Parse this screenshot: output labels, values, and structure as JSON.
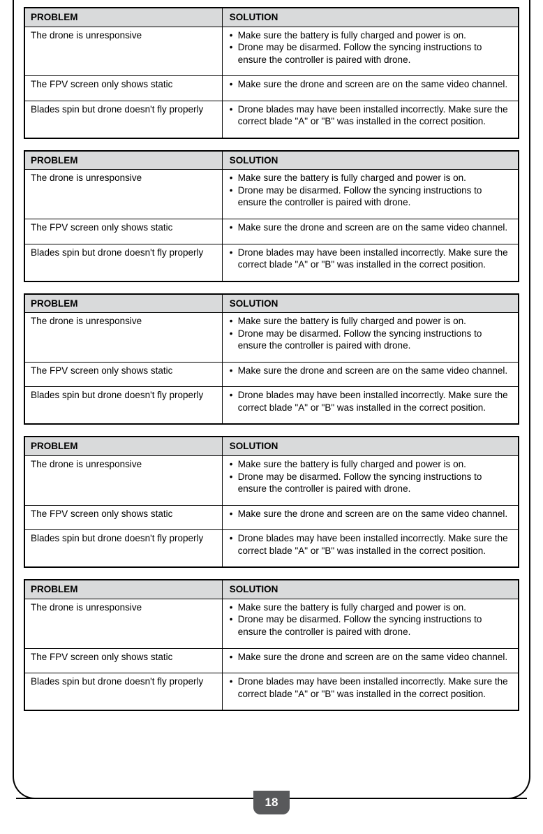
{
  "page_number": "18",
  "colors": {
    "header_bg": "#d9dadb",
    "border": "#000000",
    "page_tab_bg": "#58595b",
    "page_tab_text": "#ffffff",
    "text": "#000000"
  },
  "column_headers": {
    "problem": "PROBLEM",
    "solution": "SOLUTION"
  },
  "table": {
    "rows": [
      {
        "problem": "The drone is unresponsive",
        "solutions": [
          "Make sure the battery is fully charged and power is on.",
          "Drone may be disarmed.  Follow the syncing instructions to ensure the controller is paired with drone."
        ]
      },
      {
        "problem": "The FPV screen only shows static",
        "solutions": [
          "Make sure the drone and screen are on the same video channel."
        ]
      },
      {
        "problem": "Blades spin but drone doesn't fly properly",
        "solutions": [
          "Drone blades may have been installed incorrectly.  Make sure the correct blade \"A\" or \"B\" was installed in the correct position."
        ]
      }
    ]
  },
  "repeat_count": 5
}
